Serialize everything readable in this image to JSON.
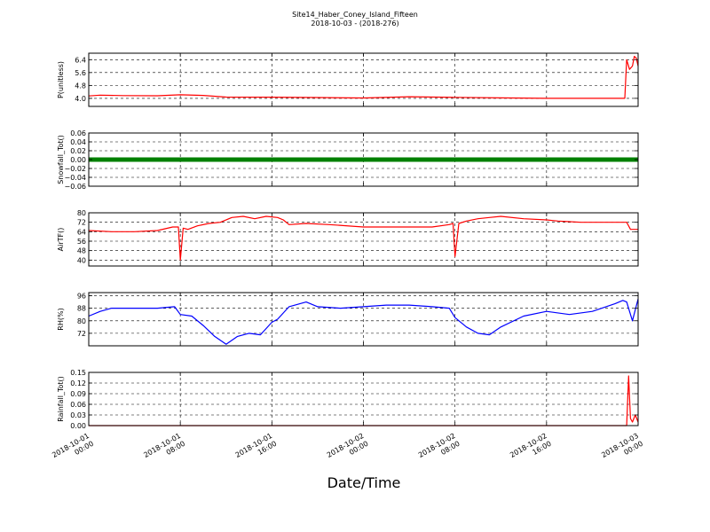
{
  "figure": {
    "title": "Site14_Haber_Coney_Island_Fifteen",
    "subtitle": "2018-10-03 - (2018-276)",
    "xlabel": "Date/Time"
  },
  "chart_data": {
    "type": "line",
    "x_range": [
      "2018-10-01 00:00",
      "2018-10-03 00:00"
    ],
    "x_ticks": [
      {
        "time": "2018-10-01 00:00",
        "l1": "2018-10-01",
        "l2": "00:00"
      },
      {
        "time": "2018-10-01 08:00",
        "l1": "2018-10-01",
        "l2": "08:00"
      },
      {
        "time": "2018-10-01 16:00",
        "l1": "2018-10-01",
        "l2": "16:00"
      },
      {
        "time": "2018-10-02 00:00",
        "l1": "2018-10-02",
        "l2": "00:00"
      },
      {
        "time": "2018-10-02 08:00",
        "l1": "2018-10-02",
        "l2": "08:00"
      },
      {
        "time": "2018-10-02 16:00",
        "l1": "2018-10-02",
        "l2": "16:00"
      },
      {
        "time": "2018-10-03 00:00",
        "l1": "2018-10-03",
        "l2": "00:00"
      }
    ],
    "grid": true,
    "panels": [
      {
        "ylabel": "P(unitless)",
        "ylim": [
          3.5,
          6.8
        ],
        "yticks": [
          4.0,
          4.8,
          5.6,
          6.4
        ],
        "ytick_labels": [
          "4.0",
          "4.8",
          "5.6",
          "6.4"
        ],
        "color": "#ff0000",
        "series": {
          "time": [
            "2018-10-01 00:00",
            "2018-10-01 01:00",
            "2018-10-01 03:00",
            "2018-10-01 06:00",
            "2018-10-01 08:00",
            "2018-10-01 10:00",
            "2018-10-01 12:00",
            "2018-10-01 16:00",
            "2018-10-01 20:00",
            "2018-10-02 00:00",
            "2018-10-02 04:00",
            "2018-10-02 08:00",
            "2018-10-02 12:00",
            "2018-10-02 16:00",
            "2018-10-02 20:00",
            "2018-10-02 22:50",
            "2018-10-02 23:00",
            "2018-10-02 23:15",
            "2018-10-02 23:30",
            "2018-10-02 23:40",
            "2018-10-02 23:50",
            "2018-10-03 00:00"
          ],
          "values": [
            4.15,
            4.2,
            4.17,
            4.16,
            4.22,
            4.18,
            4.08,
            4.07,
            4.05,
            4.02,
            4.1,
            4.06,
            4.03,
            4.0,
            4.0,
            4.0,
            6.4,
            5.8,
            6.0,
            6.6,
            6.5,
            6.0
          ]
        }
      },
      {
        "ylabel": "Snowfall_Tot()",
        "ylim": [
          -0.06,
          0.06
        ],
        "yticks": [
          0.06,
          0.04,
          0.02,
          0.0,
          -0.02,
          -0.04,
          -0.06
        ],
        "ytick_labels": [
          "0.06",
          "0.04",
          "0.02",
          "0.00",
          "−0.02",
          "−0.04",
          "−0.06"
        ],
        "color": "#008000",
        "markers": true,
        "series": {
          "time": [
            "2018-10-01 00:00",
            "2018-10-03 00:00"
          ],
          "values": [
            0.0,
            0.0
          ]
        }
      },
      {
        "ylabel": "AirTF()",
        "ylim": [
          35,
          80
        ],
        "yticks": [
          80,
          72,
          64,
          56,
          48,
          40
        ],
        "ytick_labels": [
          "80",
          "72",
          "64",
          "56",
          "48",
          "40"
        ],
        "color": "#ff0000",
        "series": {
          "time": [
            "2018-10-01 00:00",
            "2018-10-01 02:00",
            "2018-10-01 04:00",
            "2018-10-01 06:00",
            "2018-10-01 07:20",
            "2018-10-01 07:50",
            "2018-10-01 08:00",
            "2018-10-01 08:15",
            "2018-10-01 08:40",
            "2018-10-01 09:30",
            "2018-10-01 10:30",
            "2018-10-01 11:30",
            "2018-10-01 12:30",
            "2018-10-01 13:30",
            "2018-10-01 14:30",
            "2018-10-01 15:30",
            "2018-10-01 16:30",
            "2018-10-01 17:00",
            "2018-10-01 17:30",
            "2018-10-01 19:00",
            "2018-10-01 21:00",
            "2018-10-02 00:00",
            "2018-10-02 02:00",
            "2018-10-02 04:00",
            "2018-10-02 06:00",
            "2018-10-02 07:30",
            "2018-10-02 07:50",
            "2018-10-02 08:00",
            "2018-10-02 08:20",
            "2018-10-02 09:00",
            "2018-10-02 10:00",
            "2018-10-02 11:00",
            "2018-10-02 12:00",
            "2018-10-02 14:00",
            "2018-10-02 16:00",
            "2018-10-02 17:00",
            "2018-10-02 19:00",
            "2018-10-02 21:00",
            "2018-10-02 22:30",
            "2018-10-02 23:00",
            "2018-10-02 23:20",
            "2018-10-03 00:00"
          ],
          "values": [
            65,
            64,
            64,
            65,
            68,
            68,
            40,
            67,
            66,
            69,
            71,
            72,
            76,
            77,
            75,
            77,
            76,
            74,
            70,
            71,
            70,
            68,
            68,
            68,
            68,
            70,
            71,
            43,
            71,
            73,
            75,
            76,
            77,
            75,
            74,
            73,
            72,
            72,
            72,
            72,
            66,
            66
          ]
        }
      },
      {
        "ylabel": "RH(%)",
        "ylim": [
          64,
          98
        ],
        "yticks": [
          96,
          88,
          80,
          72
        ],
        "ytick_labels": [
          "96",
          "88",
          "80",
          "72"
        ],
        "color": "#0000ff",
        "series": {
          "time": [
            "2018-10-01 00:00",
            "2018-10-01 01:00",
            "2018-10-01 02:00",
            "2018-10-01 04:00",
            "2018-10-01 06:00",
            "2018-10-01 07:30",
            "2018-10-01 08:00",
            "2018-10-01 09:00",
            "2018-10-01 10:00",
            "2018-10-01 11:00",
            "2018-10-01 12:00",
            "2018-10-01 13:00",
            "2018-10-01 14:00",
            "2018-10-01 15:00",
            "2018-10-01 16:00",
            "2018-10-01 16:30",
            "2018-10-01 17:30",
            "2018-10-01 19:00",
            "2018-10-01 20:00",
            "2018-10-01 22:00",
            "2018-10-02 00:00",
            "2018-10-02 02:00",
            "2018-10-02 04:00",
            "2018-10-02 06:00",
            "2018-10-02 07:30",
            "2018-10-02 08:00",
            "2018-10-02 09:00",
            "2018-10-02 10:00",
            "2018-10-02 11:00",
            "2018-10-02 12:00",
            "2018-10-02 14:00",
            "2018-10-02 16:00",
            "2018-10-02 18:00",
            "2018-10-02 20:00",
            "2018-10-02 22:00",
            "2018-10-02 22:40",
            "2018-10-02 23:00",
            "2018-10-02 23:30",
            "2018-10-03 00:00"
          ],
          "values": [
            83,
            86,
            88,
            88,
            88,
            89,
            84,
            83,
            77,
            70,
            65,
            70,
            72,
            71,
            79,
            81,
            89,
            92,
            89,
            88,
            89,
            90,
            90,
            89,
            88,
            82,
            76,
            72,
            71,
            76,
            83,
            86,
            84,
            86,
            91,
            93,
            92,
            80,
            94
          ]
        }
      },
      {
        "ylabel": "Rainfall_Tot()",
        "ylim": [
          0,
          0.15
        ],
        "yticks": [
          0.15,
          0.12,
          0.09,
          0.06,
          0.03,
          0.0
        ],
        "ytick_labels": [
          "0.15",
          "0.12",
          "0.09",
          "0.06",
          "0.03",
          "0.00"
        ],
        "color": "#ff0000",
        "series": {
          "time": [
            "2018-10-01 00:00",
            "2018-10-02 23:00",
            "2018-10-02 23:10",
            "2018-10-02 23:20",
            "2018-10-02 23:30",
            "2018-10-02 23:45",
            "2018-10-03 00:00"
          ],
          "values": [
            0.0,
            0.0,
            0.14,
            0.02,
            0.01,
            0.03,
            0.01
          ]
        }
      }
    ]
  }
}
